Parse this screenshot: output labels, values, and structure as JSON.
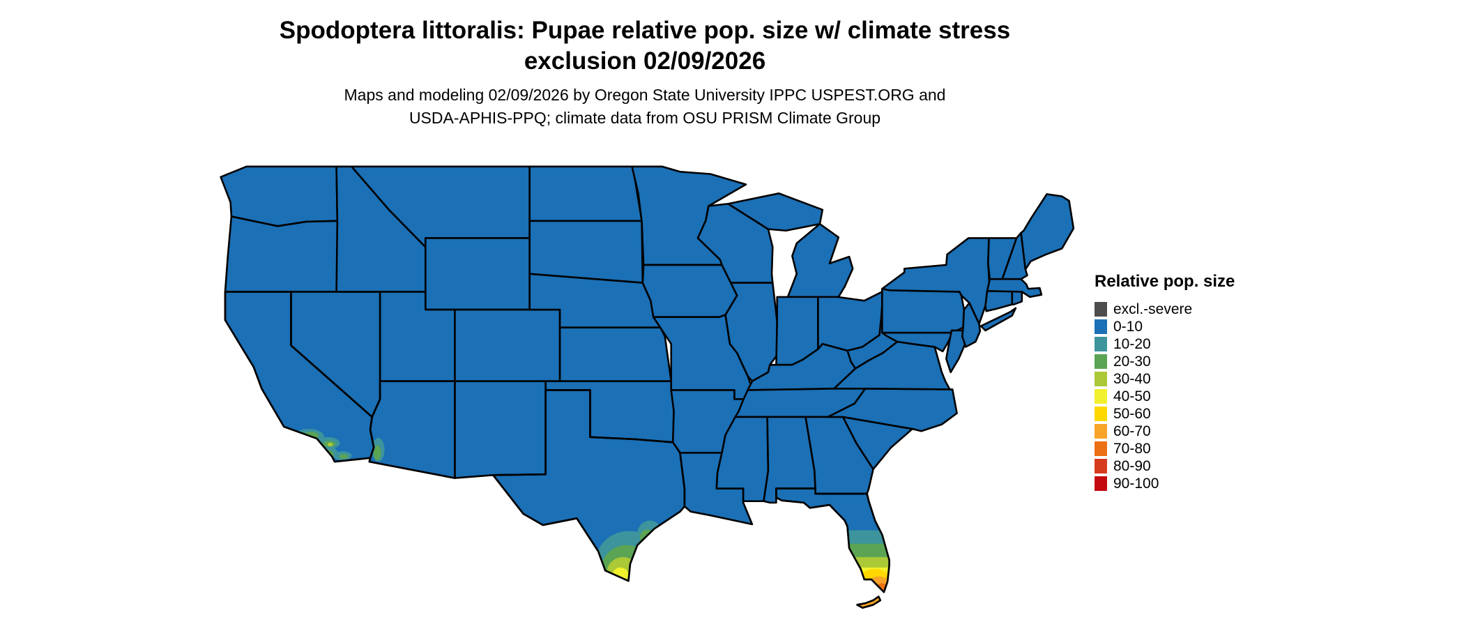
{
  "header": {
    "title_line1": "Spodoptera littoralis: Pupae relative pop. size w/ climate stress",
    "title_line2": "exclusion 02/09/2026",
    "subtitle_line1": "Maps and modeling 02/09/2026 by Oregon State University IPPC USPEST.ORG and",
    "subtitle_line2": "USDA-APHIS-PPQ; climate data from OSU PRISM Climate Group"
  },
  "legend": {
    "title": "Relative pop. size",
    "items": [
      {
        "label": "excl.-severe",
        "color": "#4d4d4d"
      },
      {
        "label": "0-10",
        "color": "#1b70b6"
      },
      {
        "label": "10-20",
        "color": "#3d949d"
      },
      {
        "label": "20-30",
        "color": "#5aa454"
      },
      {
        "label": "30-40",
        "color": "#abc837"
      },
      {
        "label": "40-50",
        "color": "#f2f12d"
      },
      {
        "label": "50-60",
        "color": "#fed800"
      },
      {
        "label": "60-70",
        "color": "#f7a428"
      },
      {
        "label": "70-80",
        "color": "#ec7014"
      },
      {
        "label": "80-90",
        "color": "#d73b1e"
      },
      {
        "label": "90-100",
        "color": "#c40a0f"
      }
    ]
  },
  "map": {
    "base_region_value": "0-10",
    "border_color": "#000000",
    "background_color": "#ffffff",
    "elevated_regions": [
      {
        "region": "Southern California coast",
        "approx_values": "10-40"
      },
      {
        "region": "Lower Colorado River valley, western Arizona",
        "approx_values": "10-30"
      },
      {
        "region": "Southern Texas / Rio Grande Valley and coastal bend",
        "approx_values": "10-50"
      },
      {
        "region": "Central and southern Florida peninsula",
        "approx_values": "10-80"
      },
      {
        "region": "Florida Keys",
        "approx_values": "60-70"
      }
    ]
  }
}
